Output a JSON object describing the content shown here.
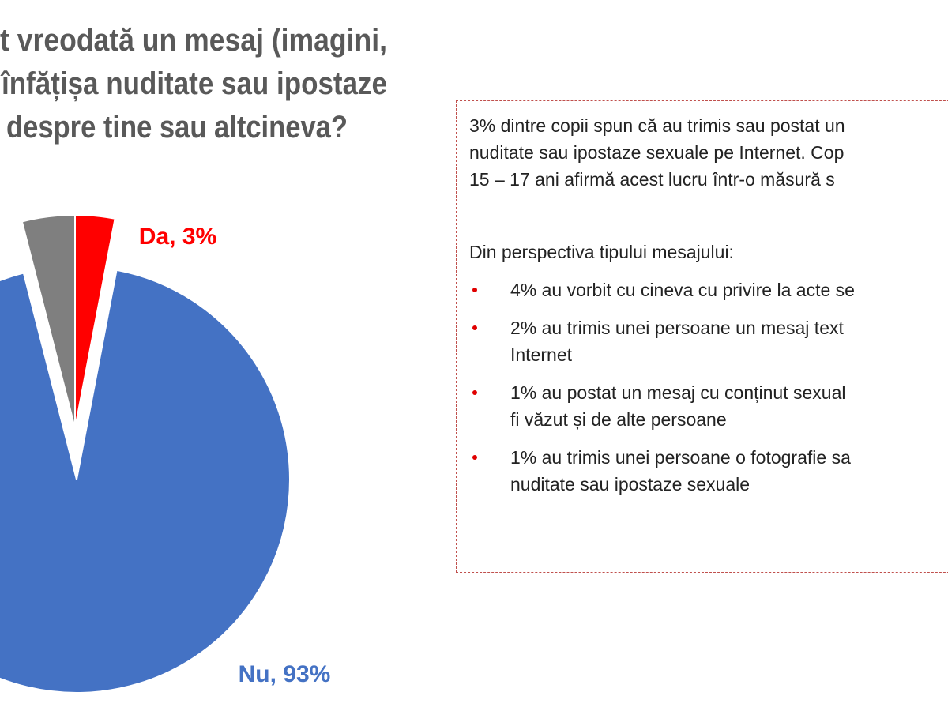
{
  "chart_data": {
    "type": "pie",
    "title": [
      "t vreodată un mesaj (imagini,",
      "înfățișa nuditate sau ipostaze",
      "despre tine sau altcineva?"
    ],
    "categories": [
      "Da",
      "Nu",
      null
    ],
    "values": [
      3,
      93,
      4
    ],
    "value_labels": [
      "Da, 3%",
      "Nu, 93%",
      null
    ],
    "colors": [
      "#ff0000",
      "#4472c4",
      "#7f7f7f"
    ]
  },
  "text_box": {
    "paragraph": [
      "3% dintre copii spun că au trimis sau postat un",
      "nuditate sau ipostaze sexuale pe Internet. Cop",
      "15 – 17 ani  afirmă acest lucru într-o măsură s"
    ],
    "heading": "Din perspectiva tipului mesajului:",
    "bullets": [
      [
        "4% au vorbit cu cineva cu privire la acte se"
      ],
      [
        "2% au trimis unei persoane un mesaj text",
        "Internet"
      ],
      [
        "1% au postat un mesaj cu conținut sexual",
        "fi văzut și de alte persoane"
      ],
      [
        "1% au trimis unei persoane o fotografie sa",
        "nuditate sau ipostaze sexuale"
      ]
    ]
  }
}
